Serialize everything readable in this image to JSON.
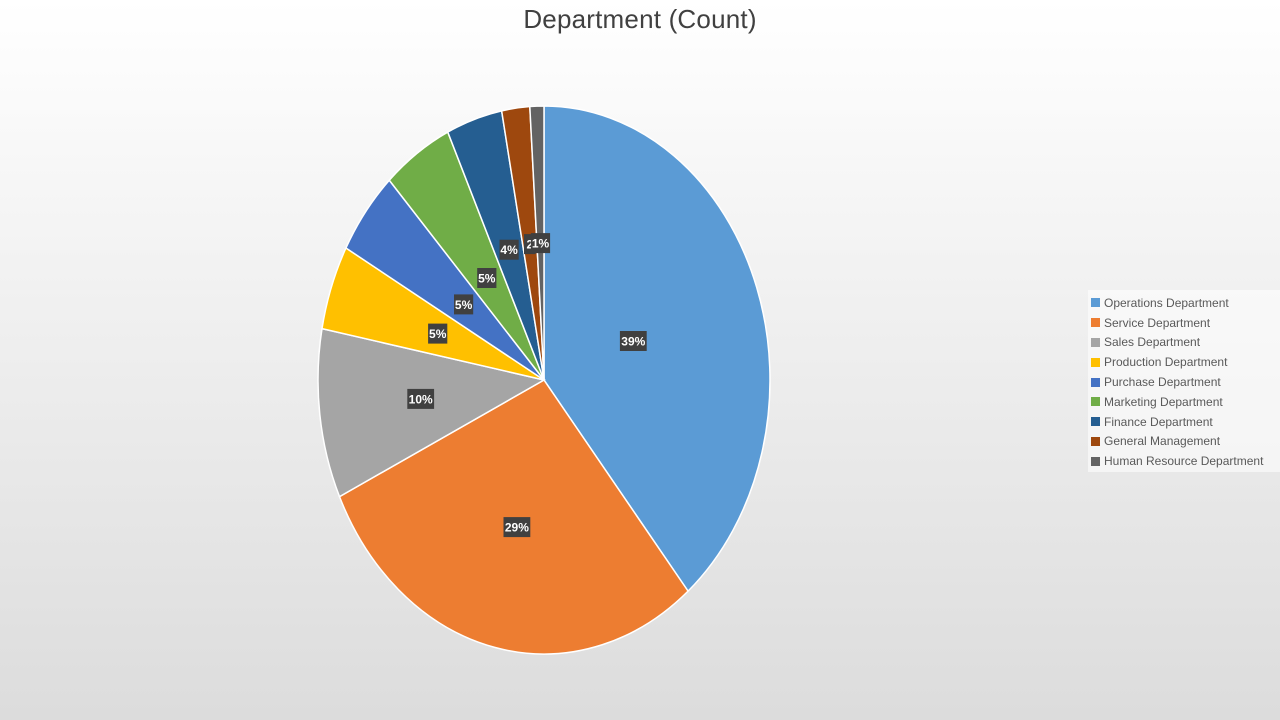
{
  "chart_data": {
    "type": "pie",
    "title": "Department (Count)",
    "categories": [
      "Operations Department",
      "Service Department",
      "Sales Department",
      "Production Department",
      "Purchase Department",
      "Marketing Department",
      "Finance Department",
      "General Management",
      "Human Resource Department"
    ],
    "values": [
      39,
      29,
      10,
      5,
      5,
      5,
      4,
      2,
      1
    ],
    "data_labels": [
      "39%",
      "29%",
      "10%",
      "5%",
      "5%",
      "5%",
      "4%",
      "2",
      "1%"
    ],
    "colors": [
      "#5b9bd5",
      "#ed7d31",
      "#a5a5a5",
      "#ffc000",
      "#4472c4",
      "#70ad47",
      "#255e91",
      "#9e480e",
      "#636363"
    ],
    "legend_position": "right"
  }
}
